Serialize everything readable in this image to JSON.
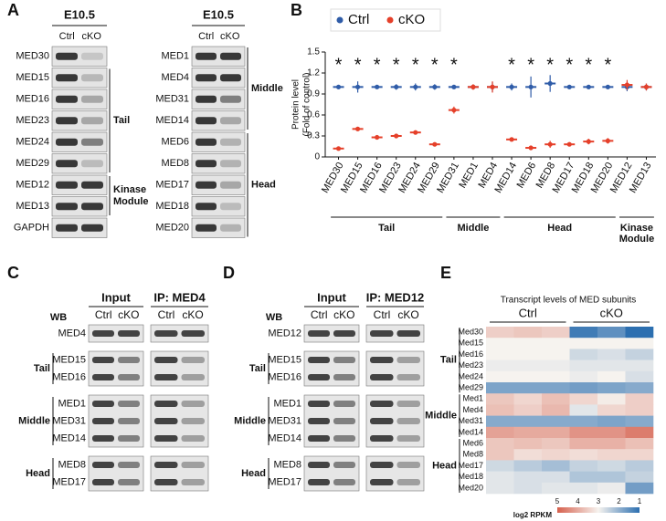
{
  "panel_a": {
    "label": "A",
    "blots": [
      {
        "header": "E10.5",
        "lanes": [
          "Ctrl",
          "cKO"
        ],
        "rows": [
          "MED30",
          "MED15",
          "MED16",
          "MED23",
          "MED24",
          "MED29",
          "MED12",
          "MED13",
          "GAPDH"
        ],
        "groups": [
          {
            "label": [
              "Tail"
            ],
            "rows": [
              1,
              5
            ]
          },
          {
            "label": [
              "Kinase",
              "Module"
            ],
            "rows": [
              6,
              7
            ]
          }
        ]
      },
      {
        "header": "E10.5",
        "lanes": [
          "Ctrl",
          "cKO"
        ],
        "rows": [
          "MED1",
          "MED4",
          "MED31",
          "MED14",
          "MED6",
          "MED8",
          "MED17",
          "MED18",
          "MED20"
        ],
        "groups": [
          {
            "label": [
              "Middle"
            ],
            "rows": [
              0,
              3
            ]
          },
          {
            "label": [
              "Head"
            ],
            "rows": [
              4,
              8
            ]
          }
        ]
      }
    ]
  },
  "panel_c": {
    "label": "C",
    "wb": "WB",
    "input": "Input",
    "ip": "IP: MED4",
    "lanes": [
      "Ctrl",
      "cKO"
    ],
    "sections": [
      {
        "rows": [
          "MED4"
        ]
      },
      {
        "group": "Tail",
        "rows": [
          "MED15",
          "MED16"
        ]
      },
      {
        "group": "Middle",
        "rows": [
          "MED1",
          "MED31",
          "MED14"
        ]
      },
      {
        "group": "Head",
        "rows": [
          "MED8",
          "MED17"
        ]
      }
    ]
  },
  "panel_d": {
    "label": "D",
    "wb": "WB",
    "input": "Input",
    "ip": "IP: MED12",
    "lanes": [
      "Ctrl",
      "cKO"
    ],
    "sections": [
      {
        "rows": [
          "MED12"
        ]
      },
      {
        "group": "Tail",
        "rows": [
          "MED15",
          "MED16"
        ]
      },
      {
        "group": "Middle",
        "rows": [
          "MED1",
          "MED31",
          "MED14"
        ]
      },
      {
        "group": "Head",
        "rows": [
          "MED8",
          "MED17"
        ]
      }
    ]
  },
  "chart_data": [
    {
      "type": "dot",
      "panel_label": "B",
      "y_label": [
        "Protein level",
        "(Fold of control)"
      ],
      "categories": [
        "MED30",
        "MED15",
        "MED16",
        "MED23",
        "MED24",
        "MED29",
        "MED31",
        "MED1",
        "MED4",
        "MED14",
        "MED6",
        "MED8",
        "MED17",
        "MED18",
        "MED20",
        "MED12",
        "MED13"
      ],
      "series": [
        {
          "name": "Ctrl",
          "color": "#2f5ca8",
          "values": [
            1.0,
            1.0,
            1.0,
            1.0,
            1.0,
            1.0,
            1.0,
            1.0,
            1.0,
            1.0,
            1.0,
            1.05,
            1.0,
            1.0,
            1.0,
            1.0,
            1.0
          ],
          "errors": [
            0.03,
            0.08,
            0.02,
            0.04,
            0.05,
            0.04,
            0.02,
            0.03,
            0.07,
            0.05,
            0.15,
            0.12,
            0.03,
            0.03,
            0.03,
            0.06,
            0.05
          ]
        },
        {
          "name": "cKO",
          "color": "#e5402a",
          "values": [
            0.12,
            0.4,
            0.28,
            0.3,
            0.35,
            0.18,
            0.67,
            1.0,
            1.0,
            0.25,
            0.13,
            0.18,
            0.18,
            0.22,
            0.23,
            1.03,
            1.0
          ],
          "errors": [
            0.02,
            0.03,
            0.03,
            0.02,
            0.03,
            0.02,
            0.05,
            0.04,
            0.08,
            0.02,
            0.03,
            0.05,
            0.03,
            0.04,
            0.04,
            0.07,
            0.05
          ]
        }
      ],
      "annotations": [
        "*",
        "*",
        "*",
        "*",
        "*",
        "*",
        "*",
        null,
        null,
        "*",
        "*",
        "*",
        "*",
        "*",
        "*",
        null,
        null
      ],
      "groups": [
        {
          "label": [
            "Tail"
          ],
          "span": [
            0,
            5
          ]
        },
        {
          "label": [
            "Middle"
          ],
          "span": [
            6,
            8
          ]
        },
        {
          "label": [
            "Head"
          ],
          "span": [
            9,
            14
          ]
        },
        {
          "label": [
            "Kinase",
            "Module"
          ],
          "span": [
            15,
            16
          ]
        }
      ],
      "ylim": [
        0,
        1.5
      ],
      "yticks": [
        0,
        0.3,
        0.6,
        0.9,
        1.2,
        1.5
      ],
      "legend": "top"
    },
    {
      "type": "heatmap",
      "panel_label": "E",
      "title": "Transcript levels of MED subunits",
      "column_groups": [
        "Ctrl",
        "cKO"
      ],
      "rows": [
        "Med30",
        "Med15",
        "Med16",
        "Med23",
        "Med24",
        "Med29",
        "Med1",
        "Med4",
        "Med31",
        "Med14",
        "Med6",
        "Med8",
        "Med17",
        "Med18",
        "Med20"
      ],
      "values": [
        [
          3.5,
          3.6,
          3.5,
          1.2,
          1.5,
          1.0
        ],
        [
          3.0,
          3.0,
          3.0,
          3.0,
          3.0,
          3.0
        ],
        [
          3.0,
          3.0,
          3.0,
          2.6,
          2.7,
          2.5
        ],
        [
          2.9,
          2.9,
          2.9,
          2.8,
          2.8,
          2.8
        ],
        [
          3.0,
          3.0,
          3.0,
          2.9,
          3.0,
          2.7
        ],
        [
          1.8,
          1.8,
          1.8,
          1.7,
          1.8,
          1.9
        ],
        [
          3.6,
          3.4,
          3.7,
          3.4,
          3.1,
          3.5
        ],
        [
          3.7,
          3.5,
          3.8,
          2.8,
          3.4,
          3.5
        ],
        [
          1.9,
          1.9,
          1.9,
          1.9,
          1.8,
          1.9
        ],
        [
          4.1,
          4.0,
          4.0,
          4.3,
          4.3,
          4.6
        ],
        [
          3.6,
          3.7,
          3.6,
          3.9,
          3.9,
          3.7
        ],
        [
          3.6,
          3.3,
          3.4,
          3.3,
          3.4,
          3.4
        ],
        [
          2.6,
          2.4,
          2.2,
          2.5,
          2.6,
          2.4
        ],
        [
          2.8,
          2.7,
          2.7,
          2.3,
          2.3,
          2.5
        ],
        [
          2.8,
          2.7,
          2.8,
          2.8,
          2.9,
          1.7
        ]
      ],
      "row_groups": [
        {
          "label": "Tail",
          "rows": [
            0,
            5
          ]
        },
        {
          "label": "Middle",
          "rows": [
            6,
            9
          ]
        },
        {
          "label": "Head",
          "rows": [
            10,
            14
          ]
        }
      ],
      "colorbar": {
        "label": "log2 RPKM",
        "lim": [
          5,
          1
        ],
        "ticks": [
          5,
          4,
          3,
          2,
          1
        ],
        "colors": [
          "#d6604d",
          "#f6f3ef",
          "#2c6fb0"
        ]
      }
    }
  ]
}
